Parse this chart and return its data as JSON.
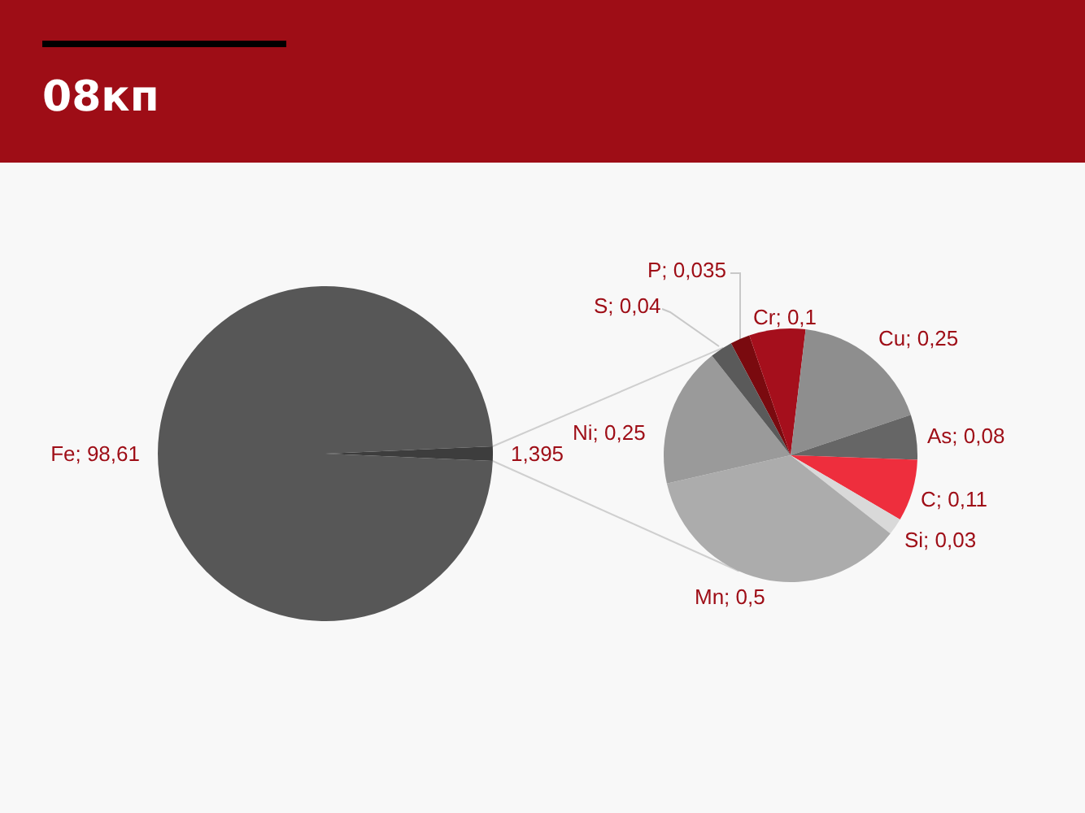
{
  "chart_data": [
    {
      "type": "pie",
      "title": "08кп",
      "categories": [
        "Fe",
        null
      ],
      "values": [
        98.61,
        1.395
      ],
      "colors": [
        "#575757",
        "#3d3d3d"
      ],
      "value_labels": [
        "98,61",
        "1,395"
      ]
    },
    {
      "type": "pie",
      "categories": [
        "P",
        "Cr",
        "Cu",
        "As",
        "C",
        "Si",
        "Mn",
        "Ni",
        "S"
      ],
      "values": [
        0.035,
        0.1,
        0.25,
        0.08,
        0.11,
        0.03,
        0.5,
        0.25,
        0.04
      ],
      "colors": [
        "#7a0a0f",
        "#a50f1c",
        "#8e8e8e",
        "#666666",
        "#ee2e3d",
        "#d9d9d9",
        "#acacac",
        "#9a9a9a",
        "#5a5a5a"
      ],
      "value_labels": [
        "0,035",
        "0,1",
        "0,25",
        "0,08",
        "0,11",
        "0,03",
        "0,5",
        "0,25",
        "0,04"
      ]
    }
  ]
}
